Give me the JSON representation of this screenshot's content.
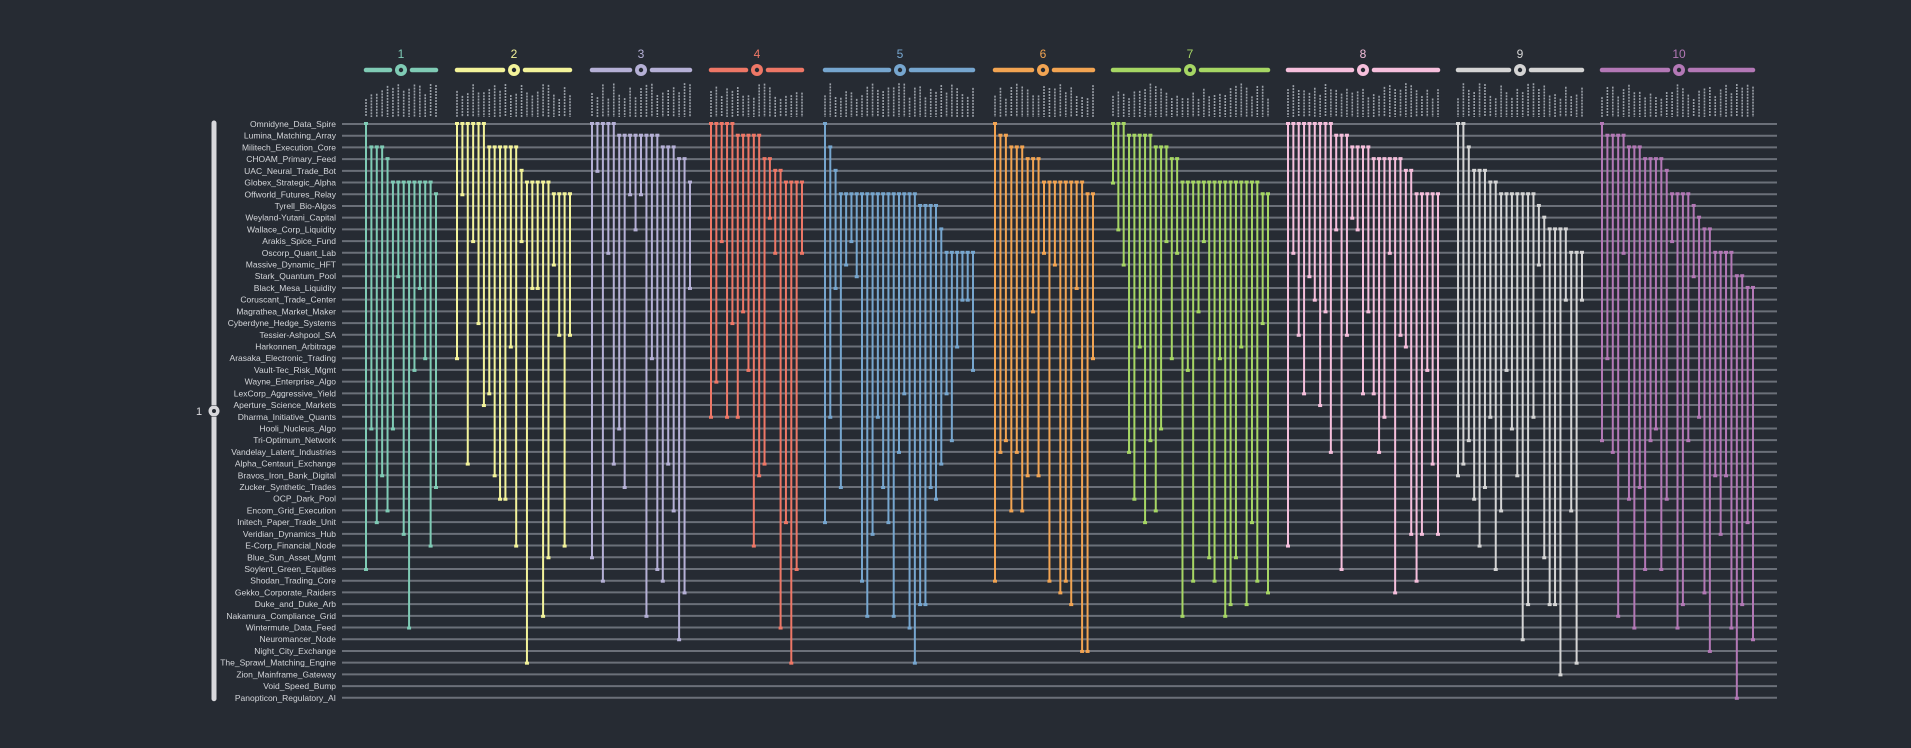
{
  "root": {
    "label": "1",
    "color": "#d8d8dc"
  },
  "rows": [
    "Omnidyne_Data_Spire",
    "Lumina_Matching_Array",
    "Militech_Execution_Core",
    "CHOAM_Primary_Feed",
    "UAC_Neural_Trade_Bot",
    "Globex_Strategic_Alpha",
    "Offworld_Futures_Relay",
    "Tyrell_Bio-Algos",
    "Weyland-Yutani_Capital",
    "Wallace_Corp_Liquidity",
    "Arakis_Spice_Fund",
    "Oscorp_Quant_Lab",
    "Massive_Dynamic_HFT",
    "Stark_Quantum_Pool",
    "Black_Mesa_Liquidity",
    "Coruscant_Trade_Center",
    "Magrathea_Market_Maker",
    "Cyberdyne_Hedge_Systems",
    "Tessier-Ashpool_SA",
    "Harkonnen_Arbitrage",
    "Arasaka_Electronic_Trading",
    "Vault-Tec_Risk_Mgmt",
    "Wayne_Enterprise_Algo",
    "LexCorp_Aggressive_Yield",
    "Aperture_Science_Markets",
    "Dharma_Initiative_Quants",
    "Hooli_Nucleus_Algo",
    "Tri-Optimum_Network",
    "Vandelay_Latent_Industries",
    "Alpha_Centauri_Exchange",
    "Bravos_Iron_Bank_Digital",
    "Zucker_Synthetic_Trades",
    "OCP_Dark_Pool",
    "Encom_Grid_Execution",
    "Initech_Paper_Trade_Unit",
    "Veridian_Dynamics_Hub",
    "E-Corp_Financial_Node",
    "Blue_Sun_Asset_Mgmt",
    "Soylent_Green_Equities",
    "Shodan_Trading_Core",
    "Gekko_Corporate_Raiders",
    "Duke_and_Duke_Arb",
    "Nakamura_Compliance_Grid",
    "Wintermute_Data_Feed",
    "Neuromancer_Node",
    "Night_City_Exchange",
    "The_Sprawl_Matching_Engine",
    "Zion_Mainframe_Gateway",
    "Void_Speed_Bump",
    "Panopticon_Regulatory_AI"
  ],
  "groups": [
    {
      "label": "1",
      "color": "#7fcbb5",
      "columns": 14
    },
    {
      "label": "2",
      "color": "#f3f39a",
      "columns": 22
    },
    {
      "label": "3",
      "color": "#b5b0d6",
      "columns": 19
    },
    {
      "label": "4",
      "color": "#ee7766",
      "columns": 18
    },
    {
      "label": "5",
      "color": "#76a6cf",
      "columns": 29
    },
    {
      "label": "6",
      "color": "#f2a452",
      "columns": 19
    },
    {
      "label": "7",
      "color": "#a6d664",
      "columns": 30
    },
    {
      "label": "8",
      "color": "#f6bfdc",
      "columns": 29
    },
    {
      "label": "9",
      "color": "#d4d4d4",
      "columns": 24
    },
    {
      "label": "10",
      "color": "#b378b6",
      "columns": 29
    }
  ],
  "colors": {
    "background": "#262b33",
    "row_line": "#6b7079",
    "row_text": "#d4d6da",
    "column_label": "#9aa0a8"
  }
}
